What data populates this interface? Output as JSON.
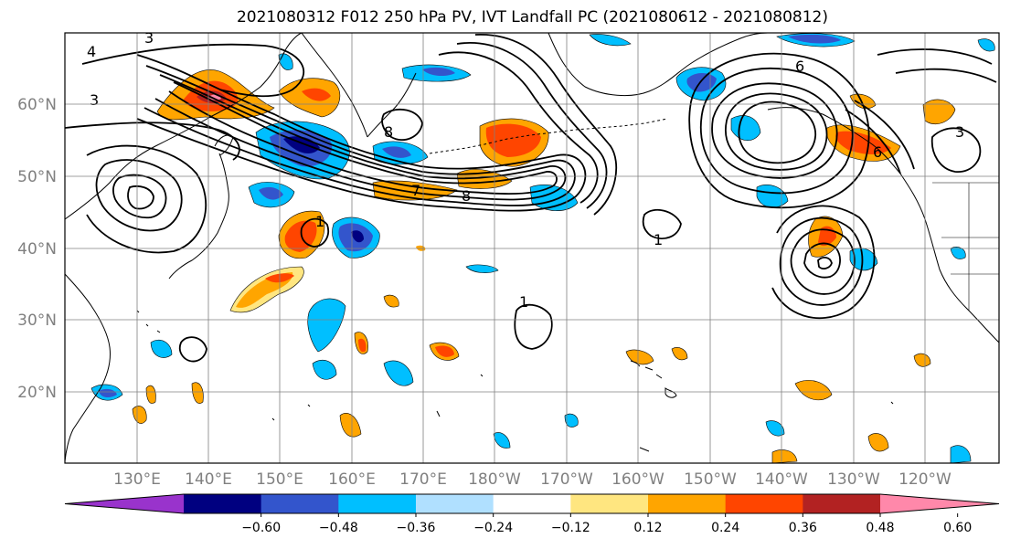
{
  "title": "2021080312 F012 250 hPa PV, IVT Landfall PC (2021080612 - 2021080812)",
  "lat_labels": [
    "60°N",
    "50°N",
    "40°N",
    "30°N",
    "20°N"
  ],
  "lat_values": [
    60,
    50,
    40,
    30,
    20
  ],
  "lon_labels": [
    "130°E",
    "140°E",
    "150°E",
    "160°E",
    "170°E",
    "180°W",
    "170°W",
    "160°W",
    "150°W",
    "140°W",
    "130°W",
    "120°W"
  ],
  "colorbar": {
    "tick_labels": [
      "−0.60",
      "−0.48",
      "−0.36",
      "−0.24",
      "−0.12",
      "0.12",
      "0.24",
      "0.36",
      "0.48",
      "0.60"
    ],
    "colors": [
      "#9933cc",
      "#000080",
      "#3355cc",
      "#00bfff",
      "#b0e0ff",
      "#ffffff",
      "#ffe680",
      "#ffa500",
      "#ff4500",
      "#b22222",
      "#ff88aa"
    ]
  },
  "contour_labels": [
    "1",
    "1",
    "1",
    "3",
    "3",
    "3",
    "4",
    "6",
    "6",
    "7",
    "8",
    "8"
  ]
}
